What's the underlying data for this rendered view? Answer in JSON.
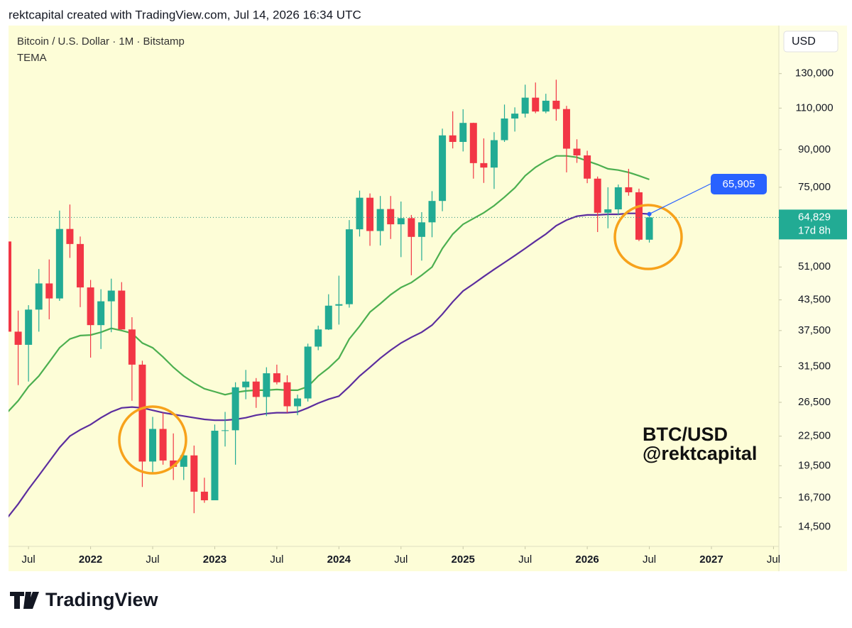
{
  "header": "rektcapital created with TradingView.com, Jul 14, 2026 16:34 UTC",
  "footer_logo": "TradingView",
  "chart_data": {
    "type": "candlestick",
    "title": "Bitcoin / U.S. Dollar · 1M · Bitstamp",
    "subtitle": "TEMA",
    "currency": "USD",
    "watermark": [
      "BTC/USD",
      "@rektcapital"
    ],
    "countdown": "17d 8h",
    "up_color": "#22ab94",
    "down_color": "#f23645",
    "log_scale": true,
    "grid": false,
    "x": [
      "2021-05",
      "2021-06",
      "2021-07",
      "2021-08",
      "2021-09",
      "2021-10",
      "2021-11",
      "2021-12",
      "2022-01",
      "2022-02",
      "2022-03",
      "2022-04",
      "2022-05",
      "2022-06",
      "2022-07",
      "2022-08",
      "2022-09",
      "2022-10",
      "2022-11",
      "2022-12",
      "2023-01",
      "2023-02",
      "2023-03",
      "2023-04",
      "2023-05",
      "2023-06",
      "2023-07",
      "2023-08",
      "2023-09",
      "2023-10",
      "2023-11",
      "2023-12",
      "2024-01",
      "2024-02",
      "2024-03",
      "2024-04",
      "2024-05",
      "2024-06",
      "2024-07",
      "2024-08",
      "2024-09",
      "2024-10",
      "2024-11",
      "2024-12",
      "2025-01",
      "2025-02",
      "2025-03",
      "2025-04",
      "2025-05",
      "2025-06",
      "2025-07",
      "2025-08",
      "2025-09",
      "2025-10",
      "2025-11",
      "2025-12",
      "2026-01",
      "2026-02",
      "2026-03",
      "2026-04",
      "2026-05",
      "2026-06",
      "2026-07"
    ],
    "open": [
      57700,
      37300,
      35000,
      41500,
      47100,
      43800,
      61300,
      57000,
      46200,
      38500,
      43200,
      45500,
      37700,
      31800,
      19900,
      23300,
      20000,
      19400,
      20500,
      17200,
      16500,
      23100,
      23150,
      28500,
      29300,
      27200,
      30500,
      29200,
      26000,
      27000,
      34700,
      37700,
      42300,
      42600,
      61200,
      71300,
      60700,
      67500,
      62700,
      64600,
      59000,
      63300,
      70200,
      96400,
      93400,
      102400,
      84300,
      82500,
      94200,
      104600,
      107100,
      115700,
      108200,
      114000,
      109500,
      90400,
      87500,
      78200,
      66300,
      67400,
      75000,
      73200,
      58200
    ],
    "high": [
      59500,
      41300,
      42400,
      50500,
      52900,
      67000,
      69000,
      59100,
      47900,
      45800,
      48200,
      47400,
      40000,
      32400,
      24700,
      25200,
      22800,
      21100,
      21500,
      18400,
      23800,
      25300,
      29200,
      31000,
      29800,
      31400,
      31800,
      30200,
      27500,
      35200,
      38400,
      44700,
      48900,
      64000,
      73800,
      72800,
      71900,
      71900,
      70000,
      65600,
      66500,
      73600,
      99600,
      108300,
      109400,
      102500,
      95000,
      97900,
      111900,
      110400,
      123200,
      124500,
      117900,
      126200,
      111200,
      94600,
      89500,
      79000,
      75000,
      76000,
      82000,
      74500,
      65500
    ],
    "low": [
      30000,
      28800,
      29300,
      37300,
      39600,
      43300,
      53300,
      42000,
      32900,
      34300,
      37200,
      37700,
      26700,
      17600,
      18800,
      19600,
      18200,
      18200,
      15500,
      16300,
      16500,
      21400,
      19600,
      26900,
      25800,
      24800,
      28900,
      25200,
      24900,
      26600,
      34100,
      37600,
      38600,
      41900,
      59100,
      56500,
      56600,
      58400,
      53500,
      49000,
      52600,
      58900,
      66800,
      90500,
      89200,
      78200,
      76600,
      74400,
      93400,
      98200,
      105100,
      107300,
      107300,
      103500,
      80600,
      84400,
      76500,
      60400,
      61500,
      65500,
      72000,
      57800,
      57400
    ],
    "close": [
      37300,
      35000,
      41500,
      47100,
      43800,
      61300,
      57000,
      46200,
      38500,
      43200,
      45500,
      37700,
      31800,
      19900,
      23300,
      20000,
      19400,
      20500,
      17200,
      16500,
      23100,
      23150,
      28500,
      29300,
      27200,
      30500,
      29200,
      26000,
      27000,
      34700,
      37700,
      42300,
      42600,
      61200,
      71300,
      60700,
      67500,
      62700,
      64600,
      59000,
      63300,
      70200,
      96400,
      93400,
      102400,
      84300,
      82500,
      94200,
      104600,
      107100,
      115700,
      108200,
      114000,
      109500,
      90400,
      87500,
      78200,
      66300,
      67400,
      75000,
      73200,
      58200,
      64829
    ],
    "value_labels": [
      null,
      null,
      null,
      null,
      null,
      null,
      null,
      null,
      null,
      null,
      null,
      null,
      null,
      null,
      null,
      null,
      null,
      null,
      null,
      null,
      null,
      null,
      null,
      null,
      null,
      null,
      null,
      null,
      null,
      null,
      null,
      null,
      null,
      null,
      null,
      null,
      null,
      null,
      null,
      null,
      null,
      null,
      null,
      null,
      null,
      null,
      null,
      null,
      null,
      null,
      null,
      null,
      null,
      null,
      null,
      null,
      null,
      null,
      null,
      null,
      null,
      null,
      "64,829"
    ],
    "series": [
      {
        "color": "#4caf50",
        "values": [
          25300,
          26700,
          28600,
          30100,
          32200,
          34500,
          36000,
          36600,
          36700,
          37200,
          37900,
          37500,
          37000,
          35300,
          34500,
          33000,
          31400,
          30100,
          29100,
          28300,
          27900,
          27500,
          27800,
          28000,
          28100,
          28100,
          28200,
          28100,
          28100,
          28600,
          30100,
          31300,
          32800,
          36000,
          38300,
          41000,
          42700,
          44600,
          46200,
          47300,
          49000,
          51000,
          55800,
          59800,
          62700,
          64500,
          66300,
          68600,
          71500,
          74800,
          79300,
          82600,
          85200,
          87300,
          87300,
          86700,
          85200,
          83700,
          82000,
          81500,
          80600,
          79300,
          77900
        ]
      },
      {
        "color": "#5b2d9e",
        "values": [
          15200,
          16200,
          17400,
          18600,
          19900,
          21300,
          22500,
          23200,
          23800,
          24600,
          25300,
          25800,
          25900,
          25800,
          25500,
          25200,
          25000,
          24800,
          24600,
          24400,
          24300,
          24300,
          24400,
          24600,
          24900,
          25100,
          25200,
          25200,
          25300,
          25800,
          26400,
          26900,
          27300,
          28600,
          30100,
          31400,
          32800,
          34100,
          35300,
          36300,
          37200,
          38500,
          40600,
          43100,
          45400,
          47000,
          48700,
          50400,
          52100,
          53900,
          55800,
          57800,
          59800,
          62300,
          64000,
          65200,
          65600,
          65600,
          65800,
          65800,
          66100,
          66100,
          65905
        ],
        "value_labels": [
          null,
          null,
          null,
          null,
          null,
          null,
          null,
          null,
          null,
          null,
          null,
          null,
          null,
          null,
          null,
          null,
          null,
          null,
          null,
          null,
          null,
          null,
          null,
          null,
          null,
          null,
          null,
          null,
          null,
          null,
          null,
          null,
          null,
          null,
          null,
          null,
          null,
          null,
          null,
          null,
          null,
          null,
          null,
          null,
          null,
          null,
          null,
          null,
          null,
          null,
          null,
          null,
          null,
          null,
          null,
          null,
          null,
          null,
          null,
          null,
          null,
          null,
          "65,905"
        ]
      }
    ],
    "xlim": [
      "2021-05",
      "2027-08"
    ],
    "xticks": [
      {
        "value": "2021-07",
        "label": "Jul"
      },
      {
        "value": "2022-01",
        "label": "2022"
      },
      {
        "value": "2022-07",
        "label": "Jul"
      },
      {
        "value": "2023-01",
        "label": "2023"
      },
      {
        "value": "2023-07",
        "label": "Jul"
      },
      {
        "value": "2024-01",
        "label": "2024"
      },
      {
        "value": "2024-07",
        "label": "Jul"
      },
      {
        "value": "2025-01",
        "label": "2025"
      },
      {
        "value": "2025-07",
        "label": "Jul"
      },
      {
        "value": "2026-01",
        "label": "2026"
      },
      {
        "value": "2026-07",
        "label": "Jul"
      },
      {
        "value": "2027-01",
        "label": "2027"
      },
      {
        "value": "2027-07",
        "label": "Jul"
      }
    ],
    "ylim": [
      13200,
      164000
    ],
    "yticks": [
      {
        "value": 130000,
        "label": "130,000"
      },
      {
        "value": 110000,
        "label": "110,000"
      },
      {
        "value": 90000,
        "label": "90,000"
      },
      {
        "value": 75000,
        "label": "75,000"
      },
      {
        "value": 51000,
        "label": "51,000"
      },
      {
        "value": 43500,
        "label": "43,500"
      },
      {
        "value": 37500,
        "label": "37,500"
      },
      {
        "value": 31500,
        "label": "31,500"
      },
      {
        "value": 26500,
        "label": "26,500"
      },
      {
        "value": 22500,
        "label": "22,500"
      },
      {
        "value": 19500,
        "label": "19,500"
      },
      {
        "value": 16700,
        "label": "16,700"
      },
      {
        "value": 14500,
        "label": "14,500"
      }
    ]
  }
}
